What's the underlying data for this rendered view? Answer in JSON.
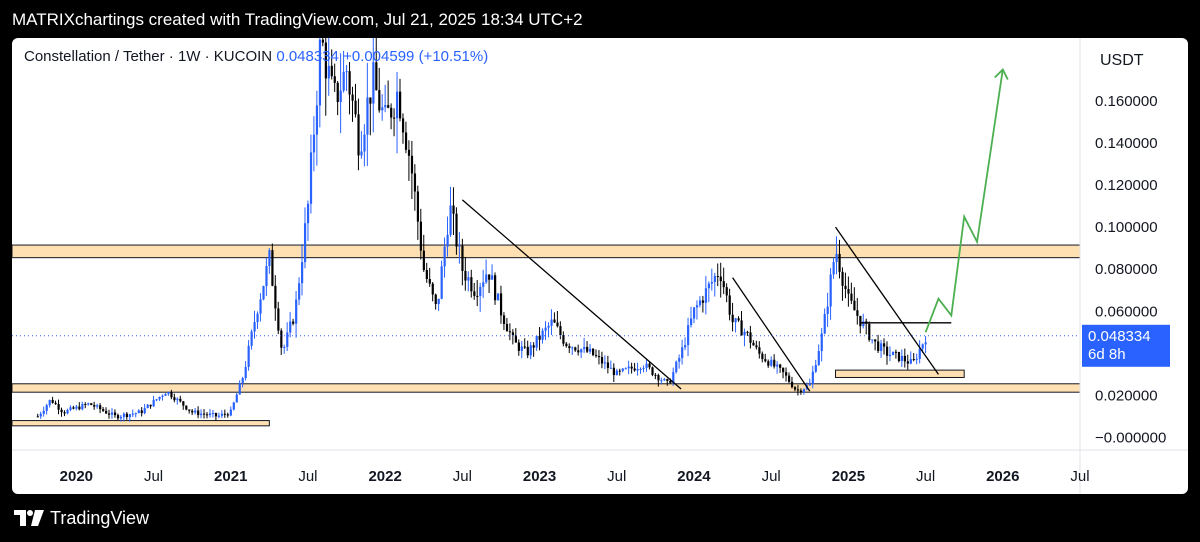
{
  "header": {
    "title": "MATRIXchartings created with TradingView.com, Jul 21, 2025 18:34 UTC+2"
  },
  "legend": {
    "symbol": "Constellation / Tether · 1W · KUCOIN",
    "price": "0.048334",
    "change": "+0.004599",
    "change_pct": "(+10.51%)"
  },
  "footer": {
    "brand": "TradingView"
  },
  "colors": {
    "up": "#2962ff",
    "down": "#000000",
    "zone_fill": "#ffe0b2",
    "projection": "#4caf50",
    "last_price_bg": "#2962ff"
  },
  "chart_data": {
    "type": "candlestick",
    "currency_label": "USDT",
    "last_price_label": "0.048334",
    "countdown_label": "6d 8h",
    "y_ticks": [
      "0.160000",
      "0.140000",
      "0.120000",
      "0.100000",
      "0.080000",
      "0.060000",
      "0.020000",
      "−0.000000"
    ],
    "y_tick_values": [
      0.16,
      0.14,
      0.12,
      0.1,
      0.08,
      0.06,
      0.02,
      0.0
    ],
    "x_ticks": [
      "2020",
      "Jul",
      "2021",
      "Jul",
      "2022",
      "Jul",
      "2023",
      "Jul",
      "2024",
      "Jul",
      "2025",
      "Jul",
      "2026",
      "Jul"
    ],
    "x_tick_dates": [
      "2020-01",
      "2020-07",
      "2021-01",
      "2021-07",
      "2022-01",
      "2022-07",
      "2023-01",
      "2023-07",
      "2024-01",
      "2024-07",
      "2025-01",
      "2025-07",
      "2026-01",
      "2026-07"
    ],
    "x_tick_bold": [
      true,
      false,
      true,
      false,
      true,
      false,
      true,
      false,
      true,
      false,
      true,
      false,
      true,
      false
    ],
    "price_path": [
      [
        "2019-10",
        0.01
      ],
      [
        "2019-11",
        0.018
      ],
      [
        "2019-12",
        0.012
      ],
      [
        "2020-02",
        0.016
      ],
      [
        "2020-04",
        0.01
      ],
      [
        "2020-06",
        0.012
      ],
      [
        "2020-08",
        0.022
      ],
      [
        "2020-10",
        0.012
      ],
      [
        "2020-12",
        0.01
      ],
      [
        "2021-01",
        0.012
      ],
      [
        "2021-02",
        0.03
      ],
      [
        "2021-03",
        0.06
      ],
      [
        "2021-04",
        0.085
      ],
      [
        "2021-05",
        0.04
      ],
      [
        "2021-06",
        0.06
      ],
      [
        "2021-07",
        0.11
      ],
      [
        "2021-08",
        0.19
      ],
      [
        "2021-09",
        0.16
      ],
      [
        "2021-10",
        0.175
      ],
      [
        "2021-11",
        0.14
      ],
      [
        "2021-12",
        0.17
      ],
      [
        "2022-01",
        0.15
      ],
      [
        "2022-02",
        0.165
      ],
      [
        "2022-03",
        0.13
      ],
      [
        "2022-04",
        0.08
      ],
      [
        "2022-05",
        0.06
      ],
      [
        "2022-06",
        0.11
      ],
      [
        "2022-07",
        0.08
      ],
      [
        "2022-08",
        0.07
      ],
      [
        "2022-09",
        0.08
      ],
      [
        "2022-10",
        0.06
      ],
      [
        "2022-11",
        0.045
      ],
      [
        "2022-12",
        0.04
      ],
      [
        "2023-02",
        0.055
      ],
      [
        "2023-03",
        0.045
      ],
      [
        "2023-05",
        0.04
      ],
      [
        "2023-07",
        0.03
      ],
      [
        "2023-09",
        0.035
      ],
      [
        "2023-11",
        0.025
      ],
      [
        "2023-12",
        0.04
      ],
      [
        "2024-01",
        0.06
      ],
      [
        "2024-03",
        0.08
      ],
      [
        "2024-04",
        0.055
      ],
      [
        "2024-05",
        0.05
      ],
      [
        "2024-06",
        0.04
      ],
      [
        "2024-07",
        0.035
      ],
      [
        "2024-08",
        0.03
      ],
      [
        "2024-09",
        0.022
      ],
      [
        "2024-10",
        0.025
      ],
      [
        "2024-11",
        0.05
      ],
      [
        "2024-12",
        0.09
      ],
      [
        "2025-01",
        0.065
      ],
      [
        "2025-02",
        0.055
      ],
      [
        "2025-03",
        0.045
      ],
      [
        "2025-04",
        0.04
      ],
      [
        "2025-05",
        0.038
      ],
      [
        "2025-06",
        0.035
      ],
      [
        "2025-07",
        0.048
      ]
    ],
    "horizontal_zones": [
      {
        "from": "2019-08",
        "to": "2026-07",
        "low": 0.0855,
        "high": 0.0915
      },
      {
        "from": "2019-08",
        "to": "2026-07",
        "low": 0.0215,
        "high": 0.0255
      },
      {
        "from": "2019-08",
        "to": "2021-04",
        "low": 0.0055,
        "high": 0.008
      },
      {
        "from": "2024-12",
        "to": "2025-10",
        "low": 0.0285,
        "high": 0.032
      }
    ],
    "trend_lines": [
      {
        "from": [
          "2022-07",
          0.113
        ],
        "to": [
          "2023-12",
          0.023
        ]
      },
      {
        "from": [
          "2024-04",
          0.076
        ],
        "to": [
          "2024-10",
          0.022
        ]
      },
      {
        "from": [
          "2024-12",
          0.1
        ],
        "to": [
          "2025-08",
          0.03
        ]
      },
      {
        "from": [
          "2025-02",
          0.0545
        ],
        "to": [
          "2025-09",
          0.0545
        ]
      }
    ],
    "projection_path": [
      [
        "2025-07",
        0.05
      ],
      [
        "2025-08",
        0.066
      ],
      [
        "2025-09",
        0.058
      ],
      [
        "2025-10",
        0.105
      ],
      [
        "2025-11",
        0.093
      ],
      [
        "2026-01",
        0.175
      ]
    ],
    "last_price": 0.048334,
    "y_range": [
      -0.006,
      0.19
    ],
    "x_range": [
      "2019-08",
      "2026-07"
    ]
  }
}
